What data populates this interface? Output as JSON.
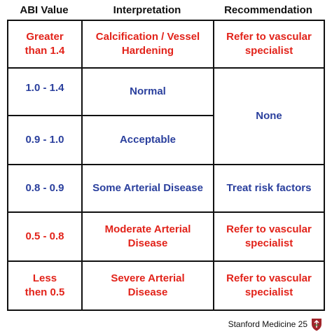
{
  "headers": {
    "abi_value": "ABI Value",
    "interpretation": "Interpretation",
    "recommendation": "Recommendation"
  },
  "rows": [
    {
      "abi": "Greater\nthan 1.4",
      "interpretation": "Calcification / Vessel\nHardening",
      "recommendation": "Refer to vascular\nspecialist"
    },
    {
      "abi": "1.0 - 1.4",
      "interpretation": "Normal",
      "recommendation": "None"
    },
    {
      "abi": "0.9 - 1.0",
      "interpretation": "Acceptable"
    },
    {
      "abi": "0.8 - 0.9",
      "interpretation": "Some Arterial Disease",
      "recommendation": "Treat risk factors"
    },
    {
      "abi": "0.5 - 0.8",
      "interpretation": "Moderate Arterial\nDisease",
      "recommendation": "Refer to vascular\nspecialist"
    },
    {
      "abi": "Less\nthen 0.5",
      "interpretation": "Severe Arterial\nDisease",
      "recommendation": "Refer to vascular\nspecialist"
    }
  ],
  "footer": {
    "brand": "Stanford Medicine 25",
    "logo_icon": "stanford-shield-icon"
  },
  "colors": {
    "red": "#e2231a",
    "blue": "#2a3f9d",
    "border": "#111111",
    "shield": "#a1242a"
  }
}
